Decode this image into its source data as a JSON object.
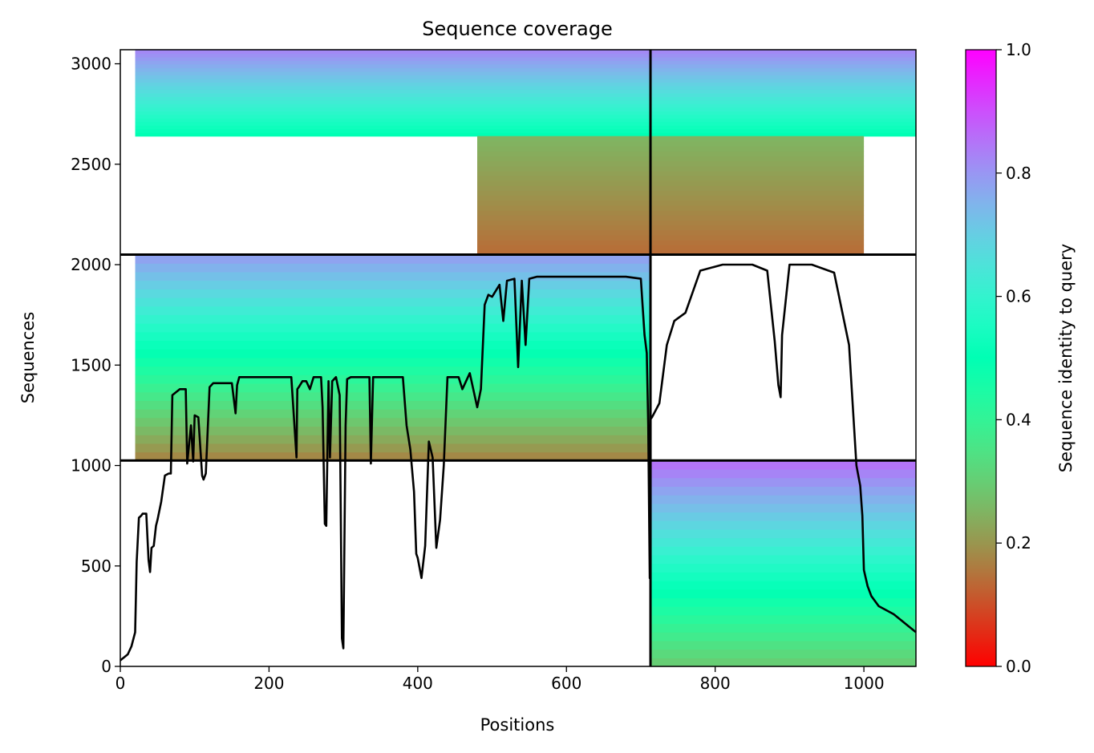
{
  "chart_data": {
    "type": "heatmap",
    "title": "Sequence coverage",
    "xlabel": "Positions",
    "ylabel": "Sequences",
    "xlim": [
      0,
      1070
    ],
    "ylim": [
      0,
      3070
    ],
    "x_ticks": [
      0,
      200,
      400,
      600,
      800,
      1000
    ],
    "y_ticks": [
      0,
      500,
      1000,
      1500,
      2000,
      2500,
      3000
    ],
    "colorbar": {
      "label": "Sequence identity to query",
      "range": [
        0,
        1
      ],
      "ticks": [
        "0.0",
        "0.2",
        "0.4",
        "0.6",
        "0.8",
        "1.0"
      ],
      "colormap": "rainbow_r"
    },
    "block_dividers": {
      "vertical_x": 713,
      "horizontal_y": [
        1025,
        2050
      ]
    },
    "coverage_blocks": [
      {
        "x": [
          20,
          713
        ],
        "y": [
          1025,
          2050
        ],
        "identity_low": 0.18,
        "identity_high": 0.78
      },
      {
        "x": [
          20,
          713
        ],
        "y": [
          2640,
          3070
        ],
        "identity_low": 0.5,
        "identity_high": 0.82
      },
      {
        "x": [
          480,
          713
        ],
        "y": [
          2050,
          2640
        ],
        "identity_low": 0.14,
        "identity_high": 0.25
      },
      {
        "x": [
          713,
          1070
        ],
        "y": [
          2640,
          3070
        ],
        "identity_low": 0.5,
        "identity_high": 0.82
      },
      {
        "x": [
          713,
          1000
        ],
        "y": [
          2050,
          2640
        ],
        "identity_low": 0.14,
        "identity_high": 0.25
      },
      {
        "x": [
          713,
          1070
        ],
        "y": [
          0,
          1025
        ],
        "identity_low": 0.3,
        "identity_high": 0.85
      }
    ],
    "series": [
      {
        "type": "line",
        "color": "#000000",
        "x": [
          0,
          10,
          15,
          20,
          22,
          25,
          28,
          30,
          35,
          38,
          40,
          42,
          45,
          48,
          50,
          55,
          60,
          65,
          68,
          70,
          80,
          88,
          90,
          95,
          98,
          100,
          105,
          110,
          112,
          115,
          120,
          125,
          130,
          150,
          155,
          157,
          160,
          180,
          200,
          230,
          237,
          238,
          240,
          245,
          250,
          255,
          260,
          270,
          272,
          275,
          277,
          280,
          282,
          285,
          290,
          295,
          298,
          300,
          303,
          305,
          310,
          320,
          335,
          337,
          340,
          350,
          360,
          375,
          380,
          385,
          390,
          395,
          398,
          400,
          402,
          405,
          410,
          415,
          420,
          425,
          430,
          435,
          440,
          445,
          450,
          455,
          460,
          470,
          480,
          485,
          490,
          495,
          500,
          510,
          515,
          520,
          530,
          535,
          540,
          545,
          550,
          560,
          600,
          650,
          680,
          700,
          705,
          708,
          710,
          712,
          713,
          715,
          725,
          735,
          745,
          760,
          780,
          800,
          810,
          830,
          850,
          870,
          880,
          885,
          888,
          890,
          900,
          930,
          960,
          980,
          985,
          990,
          995,
          998,
          1000,
          1005,
          1010,
          1020,
          1030,
          1040,
          1050,
          1060,
          1070
        ],
        "y": [
          30,
          60,
          100,
          170,
          520,
          740,
          750,
          760,
          760,
          530,
          470,
          590,
          600,
          700,
          730,
          820,
          950,
          960,
          960,
          1350,
          1380,
          1380,
          1010,
          1200,
          1020,
          1250,
          1240,
          950,
          930,
          960,
          1390,
          1410,
          1410,
          1410,
          1260,
          1400,
          1440,
          1440,
          1440,
          1440,
          1040,
          1380,
          1390,
          1420,
          1420,
          1380,
          1440,
          1440,
          1290,
          710,
          700,
          1420,
          1040,
          1420,
          1440,
          1350,
          140,
          90,
          1200,
          1430,
          1440,
          1440,
          1440,
          1010,
          1440,
          1440,
          1440,
          1440,
          1440,
          1200,
          1080,
          870,
          560,
          540,
          500,
          440,
          600,
          1120,
          1040,
          590,
          730,
          1000,
          1440,
          1440,
          1440,
          1440,
          1380,
          1460,
          1290,
          1380,
          1800,
          1850,
          1840,
          1900,
          1720,
          1920,
          1930,
          1490,
          1920,
          1600,
          1930,
          1940,
          1940,
          1940,
          1940,
          1930,
          1650,
          1560,
          1200,
          440,
          1230,
          1240,
          1310,
          1600,
          1720,
          1760,
          1970,
          1990,
          2000,
          2000,
          2000,
          1970,
          1620,
          1400,
          1340,
          1650,
          2000,
          2000,
          1960,
          1600,
          1300,
          1000,
          900,
          750,
          480,
          400,
          350,
          300,
          280,
          260,
          230,
          200,
          170
        ]
      }
    ]
  }
}
